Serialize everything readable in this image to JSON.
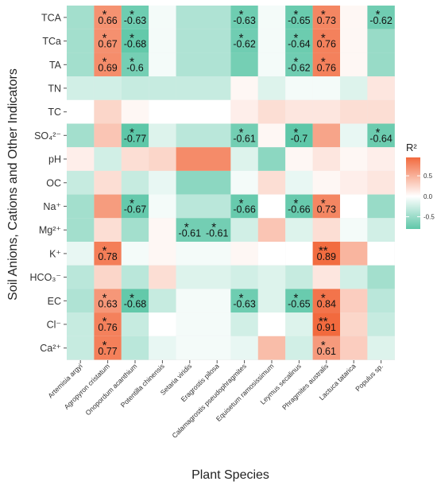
{
  "chart_data": {
    "type": "heatmap",
    "xlabel": "Plant Species",
    "ylabel": "Soil Anions, Cations and Other Indicators",
    "legend": {
      "title": "R²",
      "ticks": [
        "0.5",
        "0.0",
        "-0.5"
      ],
      "tick_values": [
        0.5,
        0.0,
        -0.5
      ],
      "range": [
        -0.8,
        0.95
      ],
      "placement": "right",
      "colors": {
        "low": "#5ec7a8",
        "mid": "#ffffff",
        "high": "#f26a3e"
      }
    },
    "x_categories": [
      "Artemisia argyi",
      "Agropyron cristatum",
      "Onopordum acanthium",
      "Potentilla chinensis",
      "Setaria viridis",
      "Eragrostis pilosa",
      "Calamagrostis pseudophragmites",
      "Equisetum ramosissimum",
      "Leymus secalinus",
      "Phragmites australis",
      "Lactuca tatarica",
      "Populus sp."
    ],
    "y_categories": [
      "TCA",
      "TCa",
      "TA",
      "TN",
      "TC",
      "SO₄²⁻",
      "pH",
      "OC",
      "Na⁺",
      "Mg²⁺",
      "K⁺",
      "HCO₃⁻",
      "EC",
      "Cl⁻",
      "Ca²⁺"
    ],
    "values": [
      [
        -0.4,
        0.66,
        -0.63,
        -0.05,
        -0.35,
        -0.35,
        -0.63,
        -0.05,
        -0.65,
        0.73,
        0.05,
        -0.62
      ],
      [
        -0.4,
        0.67,
        -0.68,
        -0.05,
        -0.35,
        -0.35,
        -0.62,
        -0.05,
        -0.64,
        0.76,
        0.05,
        -0.45
      ],
      [
        -0.4,
        0.69,
        -0.6,
        -0.05,
        -0.35,
        -0.35,
        -0.6,
        -0.05,
        -0.62,
        0.76,
        0.05,
        -0.45
      ],
      [
        -0.2,
        -0.2,
        -0.25,
        -0.25,
        -0.25,
        -0.25,
        0.05,
        -0.15,
        -0.05,
        -0.05,
        -0.15,
        0.15
      ],
      [
        0.0,
        0.25,
        0.05,
        0.0,
        0.0,
        0.0,
        0.1,
        0.2,
        0.15,
        0.15,
        0.2,
        0.2
      ],
      [
        -0.4,
        0.35,
        -0.77,
        -0.15,
        -0.3,
        -0.3,
        -0.61,
        0.05,
        -0.7,
        0.55,
        -0.1,
        -0.64
      ],
      [
        0.1,
        -0.2,
        0.2,
        0.25,
        0.7,
        0.7,
        -0.15,
        -0.5,
        0.05,
        0.15,
        0.05,
        0.1
      ],
      [
        -0.25,
        0.2,
        -0.25,
        -0.1,
        -0.5,
        -0.5,
        -0.05,
        0.2,
        -0.1,
        0.05,
        0.1,
        0.15
      ],
      [
        -0.4,
        0.6,
        -0.67,
        -0.05,
        -0.3,
        -0.3,
        -0.66,
        0.0,
        -0.66,
        0.73,
        0.0,
        -0.45
      ],
      [
        -0.4,
        0.2,
        -0.4,
        0.05,
        -0.61,
        -0.61,
        -0.2,
        0.35,
        -0.15,
        0.2,
        -0.05,
        -0.2
      ],
      [
        -0.1,
        0.78,
        -0.05,
        0.05,
        -0.05,
        -0.05,
        0.05,
        0.0,
        0.0,
        0.89,
        0.45,
        0.0
      ],
      [
        -0.3,
        0.25,
        -0.3,
        0.2,
        -0.15,
        -0.15,
        -0.2,
        -0.15,
        -0.25,
        0.15,
        -0.2,
        -0.4
      ],
      [
        -0.35,
        0.63,
        -0.68,
        -0.25,
        -0.05,
        -0.05,
        -0.63,
        -0.15,
        -0.65,
        0.84,
        0.3,
        -0.3
      ],
      [
        -0.25,
        0.76,
        -0.25,
        0.0,
        -0.05,
        -0.05,
        -0.2,
        0.0,
        -0.15,
        0.91,
        0.25,
        -0.25
      ],
      [
        -0.25,
        0.77,
        -0.3,
        -0.1,
        -0.05,
        -0.05,
        -0.1,
        0.4,
        -0.2,
        0.61,
        0.3,
        -0.15
      ]
    ],
    "annotations": [
      {
        "row": 0,
        "col": 1,
        "text": "0.66",
        "stars": "*"
      },
      {
        "row": 0,
        "col": 2,
        "text": "-0.63",
        "stars": "*"
      },
      {
        "row": 0,
        "col": 6,
        "text": "-0.63",
        "stars": "*"
      },
      {
        "row": 0,
        "col": 8,
        "text": "-0.65",
        "stars": "*"
      },
      {
        "row": 0,
        "col": 9,
        "text": "0.73",
        "stars": "*"
      },
      {
        "row": 0,
        "col": 11,
        "text": "-0.62",
        "stars": "*"
      },
      {
        "row": 1,
        "col": 1,
        "text": "0.67",
        "stars": "*"
      },
      {
        "row": 1,
        "col": 2,
        "text": "-0.68",
        "stars": "*"
      },
      {
        "row": 1,
        "col": 6,
        "text": "-0.62",
        "stars": "*"
      },
      {
        "row": 1,
        "col": 8,
        "text": "-0.64",
        "stars": "*"
      },
      {
        "row": 1,
        "col": 9,
        "text": "0.76",
        "stars": "*"
      },
      {
        "row": 2,
        "col": 1,
        "text": "0.69",
        "stars": "*"
      },
      {
        "row": 2,
        "col": 2,
        "text": "-0.6",
        "stars": "*"
      },
      {
        "row": 2,
        "col": 8,
        "text": "-0.62",
        "stars": "*"
      },
      {
        "row": 2,
        "col": 9,
        "text": "0.76",
        "stars": "*"
      },
      {
        "row": 5,
        "col": 2,
        "text": "-0.77",
        "stars": "*"
      },
      {
        "row": 5,
        "col": 6,
        "text": "-0.61",
        "stars": "*"
      },
      {
        "row": 5,
        "col": 8,
        "text": "-0.7",
        "stars": "*"
      },
      {
        "row": 5,
        "col": 11,
        "text": "-0.64",
        "stars": "*"
      },
      {
        "row": 8,
        "col": 2,
        "text": "-0.67",
        "stars": "*"
      },
      {
        "row": 8,
        "col": 6,
        "text": "-0.66",
        "stars": "*"
      },
      {
        "row": 8,
        "col": 8,
        "text": "-0.66",
        "stars": "*"
      },
      {
        "row": 8,
        "col": 9,
        "text": "0.73",
        "stars": "*"
      },
      {
        "row": 9,
        "col": 4,
        "text": "-0.61",
        "stars": "*"
      },
      {
        "row": 9,
        "col": 5,
        "text": "-0.61",
        "stars": "*"
      },
      {
        "row": 10,
        "col": 1,
        "text": "0.78",
        "stars": "*"
      },
      {
        "row": 10,
        "col": 9,
        "text": "0.89",
        "stars": "**"
      },
      {
        "row": 12,
        "col": 1,
        "text": "0.63",
        "stars": "*"
      },
      {
        "row": 12,
        "col": 2,
        "text": "-0.68",
        "stars": "*"
      },
      {
        "row": 12,
        "col": 6,
        "text": "-0.63",
        "stars": "*"
      },
      {
        "row": 12,
        "col": 8,
        "text": "-0.65",
        "stars": "*"
      },
      {
        "row": 12,
        "col": 9,
        "text": "0.84",
        "stars": "*"
      },
      {
        "row": 13,
        "col": 1,
        "text": "0.76",
        "stars": "*"
      },
      {
        "row": 13,
        "col": 9,
        "text": "0.91",
        "stars": "**"
      },
      {
        "row": 14,
        "col": 1,
        "text": "0.77",
        "stars": "*"
      },
      {
        "row": 14,
        "col": 9,
        "text": "0.61",
        "stars": "*"
      }
    ]
  }
}
